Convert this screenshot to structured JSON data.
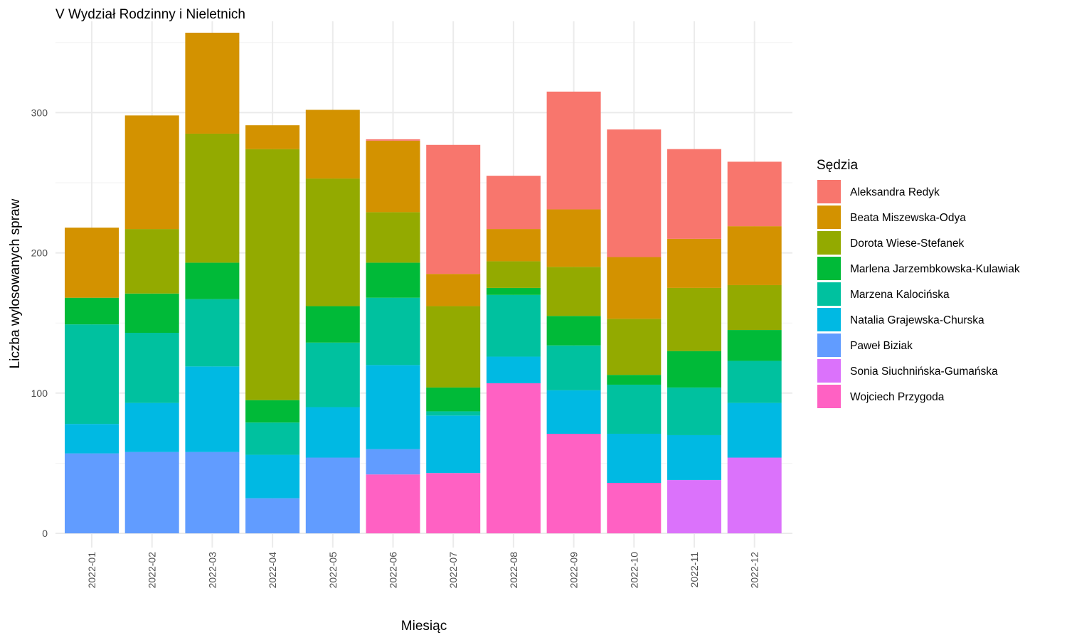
{
  "chart_data": {
    "type": "bar",
    "stacked": true,
    "title": "V Wydział Rodzinny i Nieletnich",
    "xlabel": "Miesiąc",
    "ylabel": "Liczba wylosowanych spraw",
    "ylim": [
      0,
      360
    ],
    "yticks": [
      0,
      100,
      200,
      300
    ],
    "grid": true,
    "legend_position": "right",
    "legend_title": "Sędzia",
    "categories": [
      "2022-01",
      "2022-02",
      "2022-03",
      "2022-04",
      "2022-05",
      "2022-06",
      "2022-07",
      "2022-08",
      "2022-09",
      "2022-10",
      "2022-11",
      "2022-12"
    ],
    "series": [
      {
        "name": "Aleksandra Redyk",
        "color": "#F8766D",
        "values": [
          0,
          0,
          0,
          0,
          0,
          1,
          92,
          38,
          84,
          91,
          64,
          46
        ]
      },
      {
        "name": "Beata Miszewska-Odya",
        "color": "#D39200",
        "values": [
          50,
          81,
          72,
          17,
          49,
          51,
          23,
          23,
          41,
          44,
          35,
          42
        ]
      },
      {
        "name": "Dorota Wiese-Stefanek",
        "color": "#93AA00",
        "values": [
          0,
          46,
          92,
          179,
          91,
          36,
          58,
          19,
          35,
          40,
          45,
          32
        ]
      },
      {
        "name": "Marlena Jarzembkowska-Kulawiak",
        "color": "#00BA38",
        "values": [
          19,
          28,
          26,
          16,
          26,
          25,
          17,
          5,
          21,
          7,
          26,
          22
        ]
      },
      {
        "name": "Marzena Kalocińska",
        "color": "#00C19F",
        "values": [
          71,
          50,
          48,
          23,
          46,
          48,
          3,
          44,
          32,
          35,
          34,
          30
        ]
      },
      {
        "name": "Natalia Grajewska-Churska",
        "color": "#00B9E3",
        "values": [
          21,
          35,
          61,
          31,
          36,
          60,
          41,
          19,
          31,
          35,
          32,
          39
        ]
      },
      {
        "name": "Paweł Biziak",
        "color": "#619CFF",
        "values": [
          57,
          58,
          58,
          25,
          54,
          18,
          0,
          0,
          0,
          0,
          0,
          0
        ]
      },
      {
        "name": "Sonia Siuchnińska-Gumańska",
        "color": "#DB72FB",
        "values": [
          0,
          0,
          0,
          0,
          0,
          0,
          0,
          0,
          0,
          0,
          38,
          54
        ]
      },
      {
        "name": "Wojciech Przygoda",
        "color": "#FF61C3",
        "values": [
          0,
          0,
          0,
          0,
          0,
          42,
          43,
          107,
          71,
          36,
          0,
          0
        ]
      }
    ]
  }
}
